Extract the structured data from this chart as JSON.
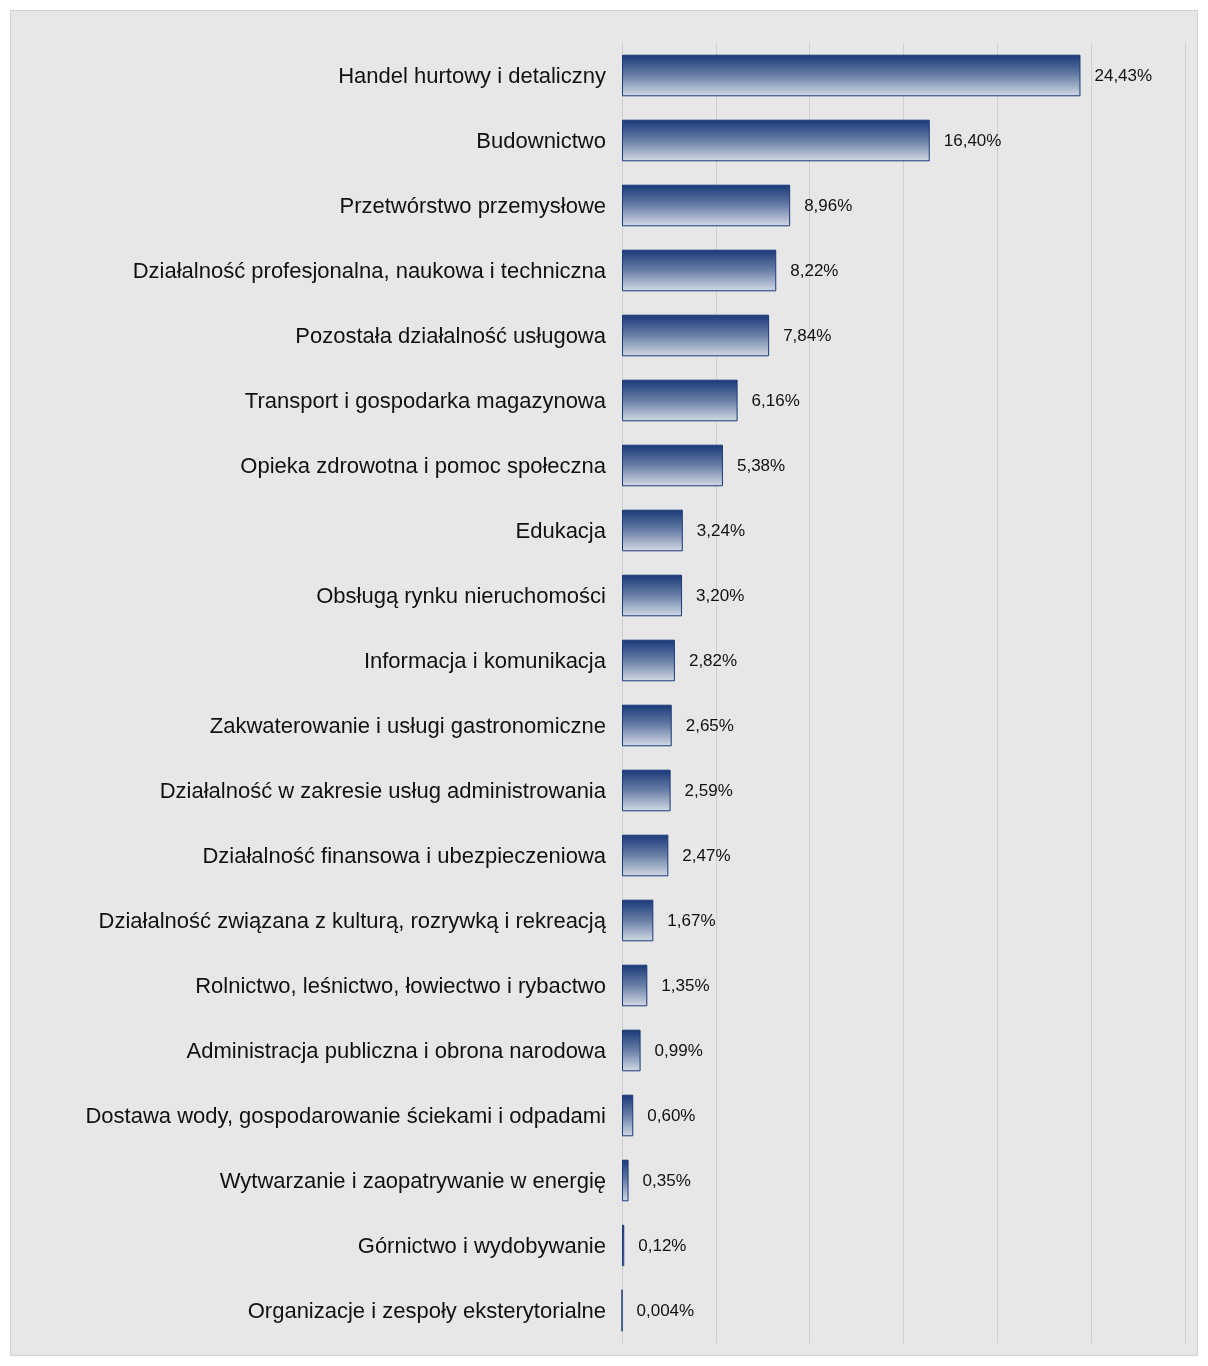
{
  "chart_data": {
    "type": "bar",
    "orientation": "horizontal",
    "categories": [
      "Handel hurtowy i detaliczny",
      "Budownictwo",
      "Przetwórstwo przemysłowe",
      "Działalność profesjonalna, naukowa i techniczna",
      "Pozostała działalność usługowa",
      "Transport i gospodarka magazynowa",
      "Opieka zdrowotna i pomoc społeczna",
      "Edukacja",
      "Obsługą rynku nieruchomości",
      "Informacja i komunikacja",
      "Zakwaterowanie i usługi gastronomiczne",
      "Działalność w zakresie usług administrowania",
      "Działalność finansowa i ubezpieczeniowa",
      "Działalność związana z kulturą, rozrywką i rekreacją",
      "Rolnictwo, leśnictwo, łowiectwo i rybactwo",
      "Administracja publiczna i obrona narodowa",
      "Dostawa wody, gospodarowanie ściekami i odpadami",
      "Wytwarzanie i zaopatrywanie w energię",
      "Górnictwo i wydobywanie",
      "Organizacje i zespoły eksterytorialne"
    ],
    "values": [
      24.43,
      16.4,
      8.96,
      8.22,
      7.84,
      6.16,
      5.38,
      3.24,
      3.2,
      2.82,
      2.65,
      2.59,
      2.47,
      1.67,
      1.35,
      0.99,
      0.6,
      0.35,
      0.12,
      0.004
    ],
    "value_labels": [
      "24,43%",
      "16,40%",
      "8,96%",
      "8,22%",
      "7,84%",
      "6,16%",
      "5,38%",
      "3,24%",
      "3,20%",
      "2,82%",
      "2,65%",
      "2,59%",
      "2,47%",
      "1,67%",
      "1,35%",
      "0,99%",
      "0,60%",
      "0,35%",
      "0,12%",
      "0,004%"
    ],
    "color": "#1a3a78",
    "xlim": [
      0,
      30
    ],
    "xticks": [
      {
        "value": 0,
        "label": null
      },
      {
        "value": 5,
        "label": null
      },
      {
        "value": 10,
        "label": null
      },
      {
        "value": 15,
        "label": null
      },
      {
        "value": 20,
        "label": null
      },
      {
        "value": 25,
        "label": null
      },
      {
        "value": 30,
        "label": null
      }
    ],
    "tick_labels": "y",
    "grid": "x"
  }
}
